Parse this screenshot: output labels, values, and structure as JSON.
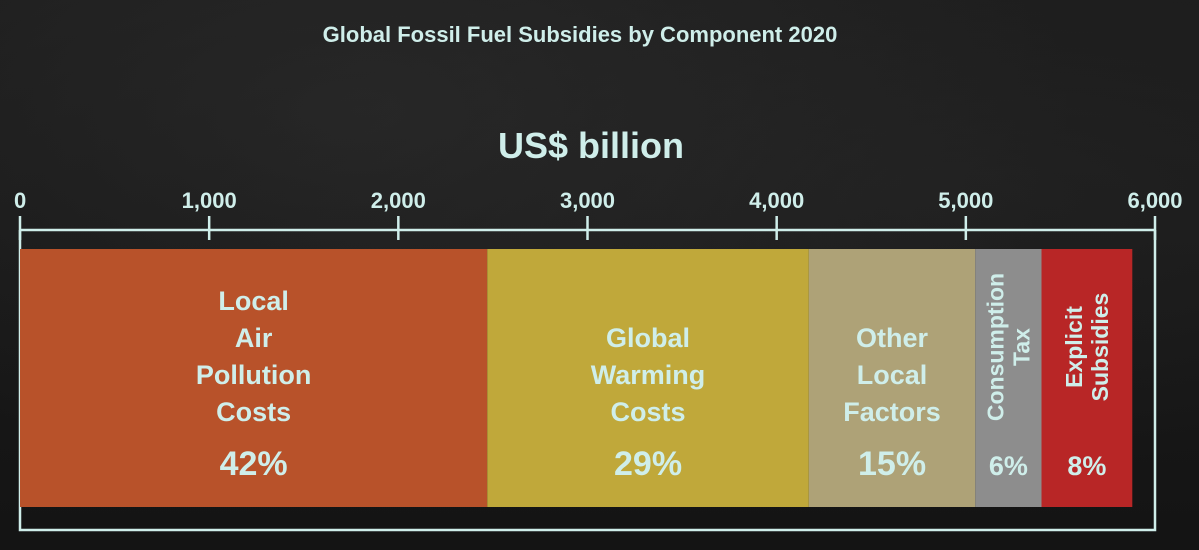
{
  "chart_data": {
    "type": "bar",
    "title": "Global Fossil Fuel Subsidies by Component 2020",
    "unit_label": "US$ billion",
    "xlim": [
      0,
      6000
    ],
    "ticks": [
      "0",
      "1,000",
      "2,000",
      "3,000",
      "4,000",
      "5,000",
      "6,000"
    ],
    "tick_values": [
      0,
      1000,
      2000,
      3000,
      4000,
      5000,
      6000
    ],
    "series": [
      {
        "name": "Local Air Pollution Costs",
        "lines": [
          "Local",
          "Air",
          "Pollution",
          "Costs"
        ],
        "percent_label": "42%",
        "start": 0,
        "end": 2470,
        "color": "#b8522a",
        "text_orientation": "horizontal"
      },
      {
        "name": "Global Warming Costs",
        "lines": [
          "Global",
          "Warming",
          "Costs"
        ],
        "percent_label": "29%",
        "start": 2470,
        "end": 4170,
        "color": "#c0a83a",
        "text_orientation": "horizontal"
      },
      {
        "name": "Other Local Factors",
        "lines": [
          "Other",
          "Local",
          "Factors"
        ],
        "percent_label": "15%",
        "start": 4170,
        "end": 5050,
        "color": "#aea277",
        "text_orientation": "horizontal"
      },
      {
        "name": "Consumption Tax",
        "lines": [
          "Consumption",
          "Tax"
        ],
        "percent_label": "6%",
        "start": 5050,
        "end": 5400,
        "color": "#8d8d8d",
        "text_orientation": "vertical"
      },
      {
        "name": "Explicit Subsidies",
        "lines": [
          "Explicit",
          "Subsidies"
        ],
        "percent_label": "8%",
        "start": 5400,
        "end": 5880,
        "color": "#b82626",
        "text_orientation": "vertical"
      }
    ],
    "colors": {
      "text": "#cfeeea",
      "frame": "#cfeeea",
      "background": "#171717"
    }
  }
}
